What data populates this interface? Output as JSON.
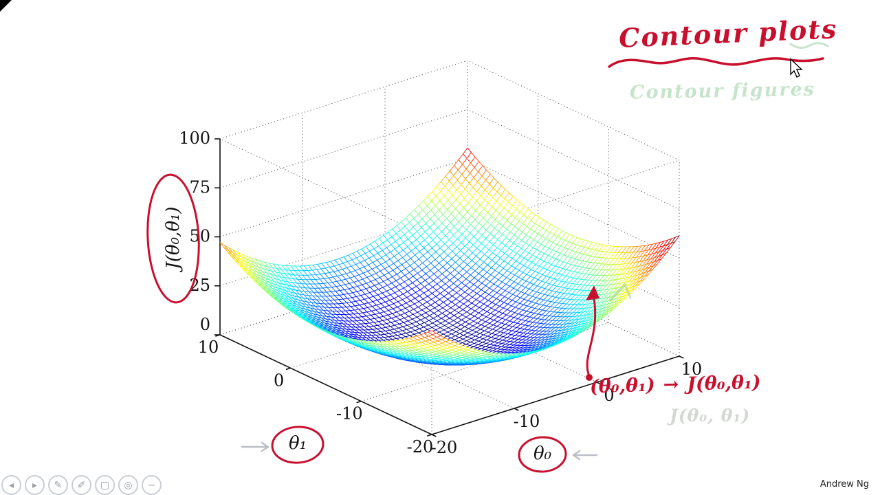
{
  "page": {
    "watermark": "Andrew Ng"
  },
  "colors": {
    "annotation_red": "#c8102e",
    "ghost_green": "#8fc99a",
    "axis_black": "#111111"
  },
  "chart_data": {
    "type": "surface",
    "title": "",
    "xlabel": "θ₀",
    "ylabel": "θ₁",
    "zlabel": "J(θ₀,θ₁)",
    "x_range": [
      -20,
      10
    ],
    "y_range": [
      -20,
      10
    ],
    "z_range": [
      0,
      100
    ],
    "x_ticks": [
      -20,
      -10,
      0,
      10
    ],
    "y_ticks": [
      10,
      0,
      -10,
      -20
    ],
    "z_ticks": [
      0,
      25,
      50,
      75,
      100
    ],
    "grid": "dotted box, all walls",
    "colormap": "jet",
    "legend": "none",
    "surface": {
      "description": "Bowl-shaped quadratic cost surface J(theta0,theta1): minimum ~0 near (theta0,theta1)=(-6,-4), rising to ~47-62 at the domain corners; rendered as a colored wire mesh with hidden-line removal",
      "min_point": [
        -6,
        -4
      ],
      "coeff_x": 0.14,
      "coeff_y": 0.1,
      "grid_divisions": 56
    }
  },
  "annotations": {
    "title_text": "Contour plots",
    "ghost_title": "Contour figures",
    "point_label": "(θ₀,θ₁)",
    "maps_to": "→",
    "value_label": "J(θ₀,θ₁)",
    "ghost_value": "J(θ₀, θ₁)"
  },
  "toolbar": {
    "items": [
      {
        "name": "previous",
        "glyph": "◂"
      },
      {
        "name": "play",
        "glyph": "▸"
      },
      {
        "name": "pen",
        "glyph": "✎"
      },
      {
        "name": "highlighter",
        "glyph": "✐"
      },
      {
        "name": "shapes",
        "glyph": "▢"
      },
      {
        "name": "zoom",
        "glyph": "◎"
      },
      {
        "name": "minus",
        "glyph": "−"
      }
    ]
  }
}
